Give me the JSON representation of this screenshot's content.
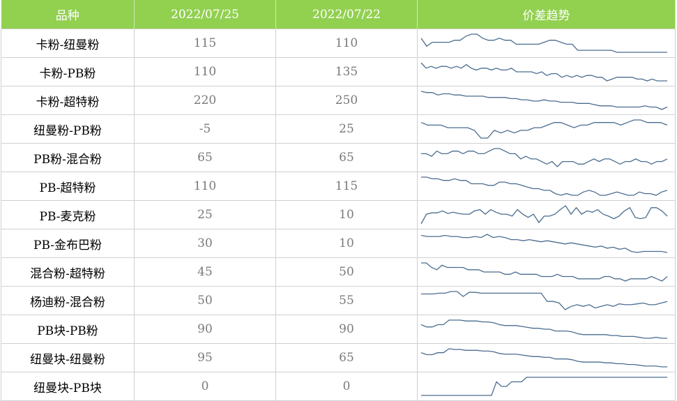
{
  "header": {
    "variety": "品种",
    "date1": "2022/07/25",
    "date2": "2022/07/22",
    "trend": "价差趋势"
  },
  "colors": {
    "header_bg": "#92d050",
    "sparkline": "#4a6c8f"
  },
  "rows": [
    {
      "name": "卡粉-纽曼粉",
      "v1": "115",
      "v2": "110",
      "trend": [
        6,
        2,
        4,
        4,
        4,
        4,
        5,
        5,
        7,
        8,
        8,
        6,
        5,
        5,
        6,
        5,
        5,
        3,
        3,
        3,
        3,
        3,
        4,
        5,
        5,
        4,
        3,
        3,
        0,
        0,
        0,
        0,
        0,
        0,
        0,
        -1,
        -1,
        -1,
        -1,
        -1,
        -1,
        -1,
        -1,
        -1,
        -1
      ]
    },
    {
      "name": "卡粉-PB粉",
      "v1": "110",
      "v2": "135",
      "trend": [
        9,
        6,
        7,
        6,
        7,
        7,
        6,
        7,
        6,
        8,
        6,
        5,
        6,
        6,
        5,
        6,
        5,
        5,
        6,
        4,
        4,
        4,
        4,
        3,
        4,
        2,
        3,
        3,
        1,
        2,
        1,
        2,
        1,
        2,
        2,
        1,
        1,
        -1,
        0,
        1,
        1,
        1,
        1,
        0,
        0,
        -1,
        0,
        -1,
        -1,
        -1
      ]
    },
    {
      "name": "卡粉-超特粉",
      "v1": "220",
      "v2": "250",
      "trend": [
        12,
        11,
        11,
        9,
        10,
        10,
        9,
        9,
        8,
        8,
        8,
        8,
        7,
        7,
        7,
        7,
        6,
        6,
        5,
        5,
        4,
        4,
        5,
        4,
        4,
        3,
        3,
        3,
        2,
        2,
        2,
        1,
        0,
        0,
        0,
        -1,
        -1,
        -1,
        -1,
        -1,
        0,
        -1,
        -1,
        -3,
        -1
      ]
    },
    {
      "name": "纽曼粉-PB粉",
      "v1": "-5",
      "v2": "25",
      "trend": [
        30,
        25,
        25,
        25,
        20,
        20,
        20,
        20,
        15,
        0,
        0,
        15,
        10,
        15,
        10,
        15,
        15,
        20,
        20,
        25,
        30,
        30,
        25,
        20,
        25,
        25,
        30,
        30,
        30,
        30,
        25,
        30,
        35,
        35,
        30,
        30,
        30,
        25
      ]
    },
    {
      "name": "PB粉-混合粉",
      "v1": "65",
      "v2": "65",
      "trend": [
        70,
        70,
        65,
        75,
        70,
        70,
        75,
        75,
        70,
        75,
        75,
        70,
        70,
        75,
        80,
        80,
        75,
        70,
        70,
        60,
        65,
        60,
        60,
        55,
        50,
        55,
        45,
        55,
        55,
        55,
        50,
        50,
        55,
        60,
        55,
        60,
        60,
        55,
        50,
        55,
        55,
        60,
        55,
        55,
        50,
        55,
        55,
        60
      ]
    },
    {
      "name": "PB-超特粉",
      "v1": "110",
      "v2": "115",
      "trend": [
        150,
        150,
        145,
        145,
        140,
        140,
        145,
        140,
        140,
        130,
        130,
        130,
        125,
        125,
        135,
        135,
        130,
        130,
        125,
        120,
        115,
        115,
        110,
        110,
        100,
        95,
        100,
        95,
        95,
        105,
        110,
        105,
        95,
        95,
        100,
        105,
        100,
        95,
        95,
        105,
        100,
        100,
        95,
        105,
        110
      ]
    },
    {
      "name": "PB-麦克粉",
      "v1": "25",
      "v2": "10",
      "trend": [
        0,
        15,
        17,
        17,
        20,
        16,
        18,
        16,
        15,
        15,
        20,
        22,
        15,
        22,
        18,
        15,
        15,
        12,
        22,
        15,
        10,
        15,
        2,
        12,
        12,
        15,
        22,
        28,
        15,
        25,
        15,
        20,
        18,
        22,
        15,
        12,
        8,
        12,
        20,
        25,
        10,
        8,
        10,
        25,
        25,
        20,
        12
      ]
    },
    {
      "name": "PB-金布巴粉",
      "v1": "30",
      "v2": "10",
      "trend": [
        50,
        48,
        48,
        48,
        50,
        48,
        48,
        46,
        46,
        48,
        46,
        52,
        46,
        48,
        46,
        42,
        42,
        40,
        42,
        40,
        38,
        40,
        38,
        36,
        34,
        36,
        34,
        32,
        30,
        28,
        30,
        26,
        28,
        24,
        26,
        20,
        18,
        20,
        20,
        20,
        20,
        18
      ]
    },
    {
      "name": "混合粉-超特粉",
      "v1": "45",
      "v2": "50",
      "trend": [
        70,
        70,
        60,
        55,
        65,
        60,
        60,
        60,
        60,
        55,
        55,
        55,
        50,
        50,
        50,
        50,
        45,
        45,
        50,
        45,
        45,
        45,
        45,
        40,
        40,
        40,
        45,
        40,
        40,
        40,
        35,
        35,
        35,
        35,
        35,
        40,
        40,
        35,
        35,
        30,
        35,
        35,
        35,
        35,
        40,
        35,
        30,
        40
      ]
    },
    {
      "name": "杨迪粉-混合粉",
      "v1": "50",
      "v2": "55",
      "trend": [
        55,
        55,
        55,
        56,
        56,
        58,
        58,
        52,
        57,
        57,
        56,
        56,
        56,
        56,
        56,
        56,
        56,
        56,
        56,
        56,
        56,
        46,
        46,
        44,
        36,
        40,
        42,
        40,
        42,
        38,
        40,
        42,
        40,
        43,
        42,
        42,
        43,
        44,
        42,
        42,
        44,
        46
      ]
    },
    {
      "name": "PB块-PB粉",
      "v1": "90",
      "v2": "90",
      "trend": [
        100,
        95,
        95,
        100,
        100,
        110,
        110,
        110,
        108,
        108,
        108,
        106,
        106,
        104,
        100,
        98,
        98,
        98,
        96,
        94,
        92,
        92,
        90,
        90,
        86,
        86,
        86,
        84,
        80,
        78,
        78,
        78,
        78,
        78,
        76,
        76,
        74,
        74,
        74,
        72,
        70,
        70,
        72,
        70,
        70
      ]
    },
    {
      "name": "纽曼块-纽曼粉",
      "v1": "95",
      "v2": "65",
      "trend": [
        110,
        105,
        105,
        110,
        110,
        120,
        118,
        118,
        116,
        116,
        116,
        114,
        114,
        112,
        108,
        106,
        106,
        106,
        104,
        102,
        100,
        100,
        98,
        98,
        94,
        94,
        94,
        92,
        88,
        86,
        86,
        86,
        86,
        84,
        84,
        82,
        82,
        80,
        80,
        78,
        76,
        76,
        76,
        74,
        74
      ]
    },
    {
      "name": "纽曼块-PB块",
      "v1": "0",
      "v2": "0",
      "trend": [
        -20,
        -20,
        -20,
        -20,
        -20,
        -20,
        -20,
        -20,
        -20,
        -20,
        -20,
        -20,
        -20,
        -20,
        -20,
        -5,
        -10,
        -10,
        -5,
        -5,
        -5,
        0,
        0,
        0,
        0,
        0,
        0,
        0,
        0,
        0,
        0,
        0,
        0,
        0,
        0,
        0,
        0,
        0,
        0,
        0,
        0,
        0,
        0,
        0,
        0,
        0,
        0,
        0,
        0,
        0
      ]
    }
  ]
}
